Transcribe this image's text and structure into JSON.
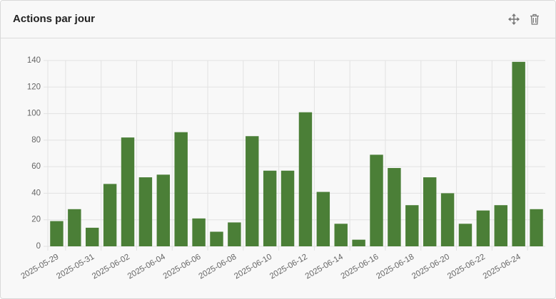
{
  "header": {
    "title": "Actions par jour"
  },
  "chart_data": {
    "type": "bar",
    "categories": [
      "2025-05-29",
      null,
      "2025-05-31",
      null,
      "2025-06-02",
      null,
      "2025-06-04",
      null,
      "2025-06-06",
      null,
      "2025-06-08",
      null,
      "2025-06-10",
      null,
      "2025-06-12",
      null,
      "2025-06-14",
      null,
      "2025-06-16",
      null,
      "2025-06-18",
      null,
      "2025-06-20",
      null,
      "2025-06-22",
      null,
      "2025-06-24",
      null
    ],
    "values": [
      19,
      28,
      14,
      47,
      82,
      52,
      54,
      86,
      21,
      11,
      18,
      83,
      57,
      57,
      101,
      41,
      17,
      5,
      69,
      59,
      31,
      52,
      40,
      17,
      27,
      31,
      139,
      28
    ],
    "color": "#4b7f37",
    "ylim": [
      0,
      140
    ],
    "yticks": [
      0,
      20,
      40,
      60,
      80,
      100,
      120,
      140
    ],
    "grid": true
  }
}
